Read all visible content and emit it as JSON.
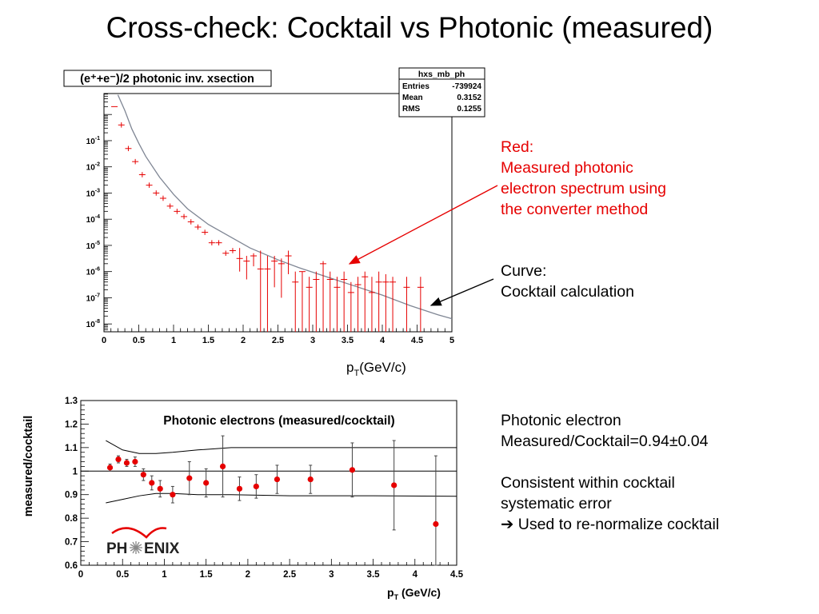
{
  "slide_title": "Cross-check: Cocktail vs Photonic (measured)",
  "chart_data": [
    {
      "type": "scatter",
      "title": "(e⁺+e⁻)/2 photonic inv. xsection",
      "xlabel": "pT(GeV/c)",
      "ylabel": "",
      "log_y": true,
      "xlim": [
        0,
        5
      ],
      "ylim_log10": [
        -8.3,
        0.8
      ],
      "x_ticks": [
        "0",
        "0.5",
        "1",
        "1.5",
        "2",
        "2.5",
        "3",
        "3.5",
        "4",
        "4.5",
        "5"
      ],
      "y_ticks": [
        {
          "exp": -8,
          "label": "10-8"
        },
        {
          "exp": -7,
          "label": "10-7"
        },
        {
          "exp": -6,
          "label": "10-6"
        },
        {
          "exp": -5,
          "label": "10-5"
        },
        {
          "exp": -4,
          "label": "10-4"
        },
        {
          "exp": -3,
          "label": "10-3"
        },
        {
          "exp": -2,
          "label": "10-2"
        },
        {
          "exp": -1,
          "label": "10-1"
        }
      ],
      "grid": false,
      "stats_box": {
        "title": "hxs_mb_ph",
        "rows": [
          {
            "label": "Entries",
            "value": "-739924"
          },
          {
            "label": "Mean",
            "value": "0.3152"
          },
          {
            "label": "RMS",
            "value": "0.1255"
          }
        ]
      },
      "series": [
        {
          "label": "Red",
          "color": "#e60000",
          "kind": "points_with_errors",
          "x": [
            0.15,
            0.25,
            0.35,
            0.45,
            0.55,
            0.65,
            0.75,
            0.85,
            0.95,
            1.05,
            1.15,
            1.25,
            1.35,
            1.45,
            1.55,
            1.65,
            1.75,
            1.85,
            1.95,
            2.05,
            2.15,
            2.25,
            2.35,
            2.45,
            2.55,
            2.65,
            2.75,
            2.85,
            2.95,
            3.05,
            3.15,
            3.25,
            3.35,
            3.45,
            3.55,
            3.65,
            3.75,
            3.85,
            3.95,
            4.05,
            4.15,
            4.35,
            4.55
          ],
          "log10_y": [
            0.3,
            -0.4,
            -1.3,
            -1.8,
            -2.3,
            -2.7,
            -3.0,
            -3.2,
            -3.5,
            -3.7,
            -3.9,
            -4.1,
            -4.3,
            -4.5,
            -4.9,
            -4.9,
            -5.3,
            -5.2,
            -5.5,
            -5.6,
            -5.4,
            -5.9,
            -5.9,
            -5.6,
            -5.7,
            -5.4,
            -6.4,
            -6.0,
            -6.6,
            -6.3,
            -5.7,
            -6.3,
            -6.6,
            -6.3,
            -6.8,
            -6.5,
            -6.2,
            -6.8,
            -6.4,
            -6.4,
            -6.4,
            -6.6,
            -6.6
          ],
          "log10_lo": [
            0.3,
            -0.5,
            -1.4,
            -1.9,
            -2.4,
            -2.8,
            -3.1,
            -3.3,
            -3.6,
            -3.8,
            -4.0,
            -4.2,
            -4.4,
            -4.6,
            -5.0,
            -5.0,
            -5.4,
            -5.3,
            -6.0,
            -6.3,
            -5.8,
            -8.3,
            -8.3,
            -6.6,
            -7.0,
            -6.1,
            -8.3,
            -8.3,
            -8.3,
            -8.3,
            -8.3,
            -8.3,
            -8.3,
            -8.3,
            -8.3,
            -8.3,
            -8.3,
            -8.3,
            -8.3,
            -8.3,
            -8.3,
            -8.3,
            -8.3
          ],
          "log10_hi": [
            0.3,
            -0.3,
            -1.2,
            -1.7,
            -2.2,
            -2.6,
            -2.9,
            -3.1,
            -3.4,
            -3.6,
            -3.8,
            -4.0,
            -4.2,
            -4.4,
            -4.8,
            -4.8,
            -5.2,
            -5.1,
            -5.1,
            -5.4,
            -5.3,
            -5.2,
            -5.4,
            -5.4,
            -5.5,
            -5.2,
            -6.0,
            -6.0,
            -6.2,
            -6.0,
            -5.6,
            -6.0,
            -6.2,
            -6.0,
            -6.4,
            -6.2,
            -6.0,
            -6.2,
            -6.0,
            -6.1,
            -6.2,
            -6.2,
            -6.2
          ]
        },
        {
          "label": "Curve",
          "color": "#7f8694",
          "kind": "line",
          "x": [
            0.2,
            0.3,
            0.4,
            0.5,
            0.6,
            0.8,
            1.0,
            1.2,
            1.5,
            1.8,
            2.1,
            2.5,
            2.8,
            3.2,
            3.6,
            4.0,
            4.4,
            4.8,
            5.0
          ],
          "log10_y": [
            0.75,
            0.15,
            -0.55,
            -1.1,
            -1.6,
            -2.4,
            -3.05,
            -3.6,
            -4.2,
            -4.65,
            -5.1,
            -5.55,
            -5.85,
            -6.2,
            -6.55,
            -6.9,
            -7.3,
            -7.65,
            -7.8
          ]
        }
      ]
    },
    {
      "type": "scatter",
      "title": "Photonic electrons (measured/cocktail)",
      "xlabel": "pT (GeV/c)",
      "ylabel": "measured/cocktail",
      "xlim": [
        0,
        4.5
      ],
      "ylim": [
        0.6,
        1.3
      ],
      "x_ticks": [
        "0",
        "0.5",
        "1",
        "1.5",
        "2",
        "2.5",
        "3",
        "3.5",
        "4",
        "4.5"
      ],
      "y_ticks": [
        "0.6",
        "0.7",
        "0.8",
        "0.9",
        "1",
        "1.1",
        "1.2",
        "1.3"
      ],
      "grid": false,
      "reference_line": 1,
      "points": {
        "color": "#e60000",
        "x": [
          0.35,
          0.45,
          0.55,
          0.65,
          0.75,
          0.85,
          0.95,
          1.1,
          1.3,
          1.5,
          1.7,
          1.9,
          2.1,
          2.35,
          2.75,
          3.25,
          3.75,
          4.25
        ],
        "y": [
          1.015,
          1.05,
          1.035,
          1.04,
          0.985,
          0.95,
          0.925,
          0.9,
          0.97,
          0.95,
          1.02,
          0.925,
          0.935,
          0.965,
          0.965,
          1.005,
          0.94,
          0.775
        ],
        "err": [
          0.015,
          0.015,
          0.015,
          0.02,
          0.025,
          0.03,
          0.035,
          0.035,
          0.07,
          0.06,
          0.13,
          0.05,
          0.05,
          0.06,
          0.06,
          0.115,
          0.19,
          0.29
        ]
      },
      "systematic_band": {
        "x": [
          0.3,
          0.5,
          0.7,
          0.9,
          1.1,
          1.4,
          1.8,
          2.5,
          3.5,
          4.5
        ],
        "upper": [
          1.13,
          1.09,
          1.075,
          1.075,
          1.08,
          1.09,
          1.1,
          1.1,
          1.1,
          1.1
        ],
        "lower": [
          0.865,
          0.88,
          0.895,
          0.905,
          0.905,
          0.9,
          0.9,
          0.895,
          0.895,
          0.893
        ]
      },
      "logo_text": {
        "part1": "PH",
        "part2": "ENIX"
      }
    }
  ],
  "annotations": {
    "red_note": [
      "Red:",
      "Measured photonic",
      "electron spectrum using",
      "the converter method"
    ],
    "curve_note": [
      "Curve:",
      "Cocktail calculation"
    ],
    "summary": [
      "Photonic electron",
      "Measured/Cocktail=0.94±0.04",
      "",
      "Consistent within cocktail",
      "systematic error",
      "➔ Used to re-normalize cocktail"
    ]
  }
}
